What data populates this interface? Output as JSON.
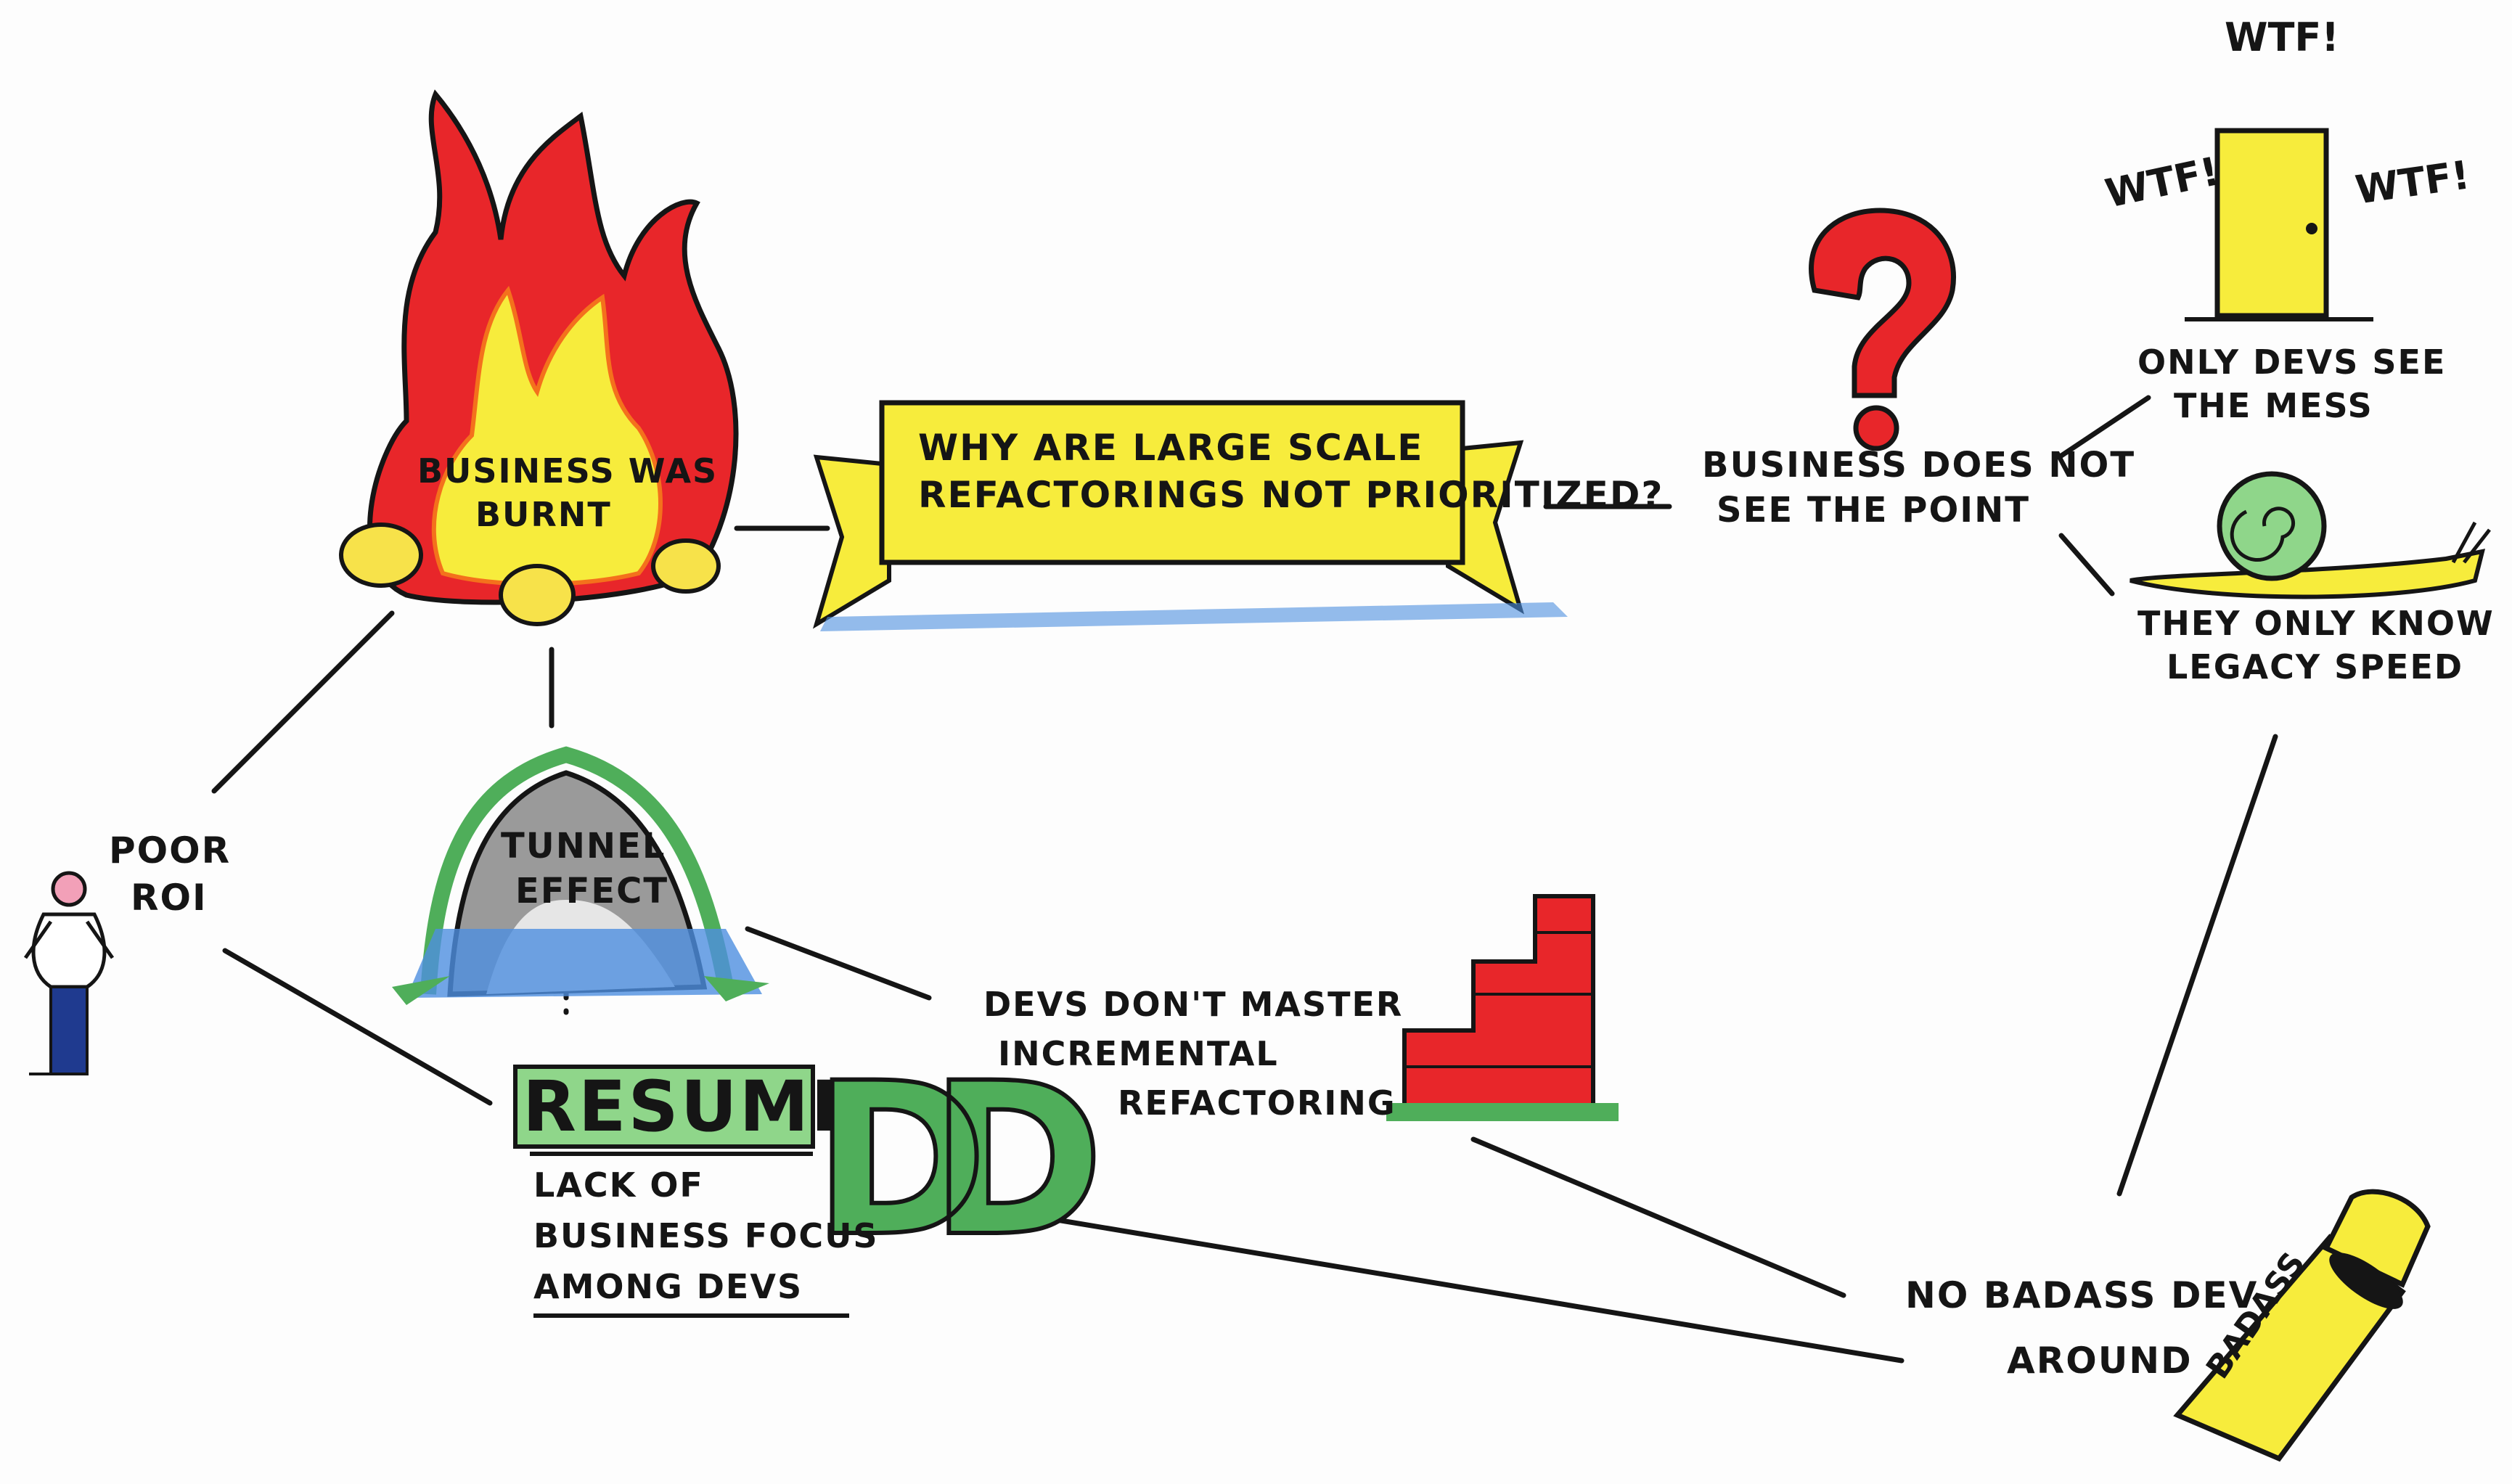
{
  "banner": {
    "line1": "WHY ARE LARGE SCALE",
    "line2": "REFACTORINGS NOT PRIORITIZED?"
  },
  "nodes": {
    "fire": {
      "line1": "BUSINESS WAS",
      "line2": "BURNT"
    },
    "tunnel": {
      "line1": "TUNNEL",
      "line2": "EFFECT"
    },
    "resume": {
      "word": "RESUME",
      "letters": "DD",
      "line1": "LACK OF",
      "line2": "BUSINESS FOCUS",
      "line3": "AMONG DEVS"
    },
    "poor_roi": {
      "line1": "POOR",
      "line2": "ROI"
    },
    "incremental": {
      "line1": "DEVS DON'T MASTER",
      "line2": "INCREMENTAL",
      "line3": "REFACTORING"
    },
    "business_point": {
      "line1": "BUSINESS DOES NOT",
      "line2": "SEE THE POINT"
    },
    "mess": {
      "line1": "ONLY DEVS SEE",
      "line2": "THE MESS",
      "exclaim": "WTF!"
    },
    "legacy": {
      "line1": "THEY ONLY KNOW",
      "line2": "LEGACY SPEED"
    },
    "badass": {
      "line1": "NO BADASS DEV",
      "line2": "AROUND",
      "arm_text": "BADASS"
    }
  },
  "colors": {
    "ink": "#151515",
    "red": "#e8262a",
    "orange": "#f4711c",
    "yellow": "#f7ec3c",
    "blue": "#4d8fe0",
    "green": "#4fae5a",
    "light_green": "#8fd68a",
    "pink": "#f2a0b8",
    "navy": "#1f3a8f"
  },
  "icons": [
    "fire-icon",
    "tunnel-icon",
    "question-mark-icon",
    "door-icon",
    "snail-icon",
    "brick-stairs-icon",
    "fist-icon",
    "person-icon"
  ]
}
